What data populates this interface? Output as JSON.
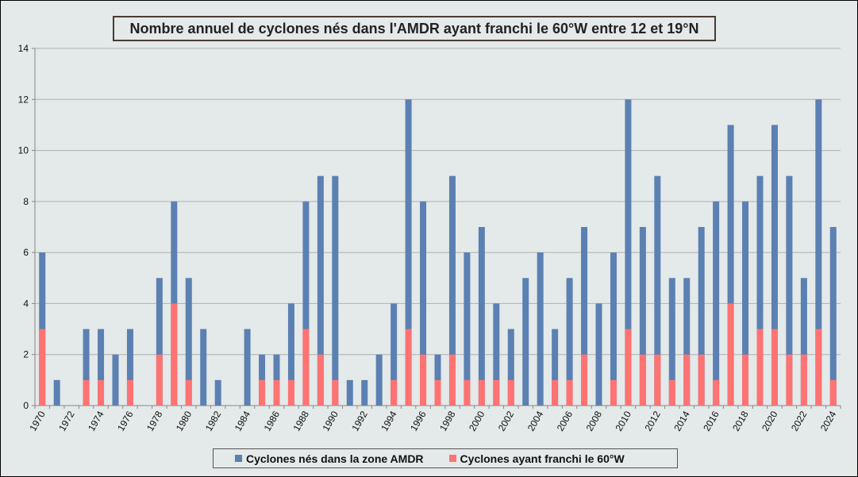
{
  "chart_data": {
    "type": "bar",
    "title": "Nombre annuel de cyclones nés dans l'AMDR ayant franchi le 60°W entre 12 et 19°N",
    "xlabel": "",
    "ylabel": "",
    "ylim": [
      0,
      14
    ],
    "yticks": [
      "0",
      "2",
      "4",
      "6",
      "8",
      "10",
      "12",
      "14"
    ],
    "grid": true,
    "legend_position": "bottom",
    "categories": [
      "1970",
      "1971",
      "1972",
      "1973",
      "1974",
      "1975",
      "1976",
      "1977",
      "1978",
      "1979",
      "1980",
      "1981",
      "1982",
      "1983",
      "1984",
      "1985",
      "1986",
      "1987",
      "1988",
      "1989",
      "1990",
      "1991",
      "1992",
      "1993",
      "1994",
      "1995",
      "1996",
      "1997",
      "1998",
      "1999",
      "2000",
      "2001",
      "2002",
      "2003",
      "2004",
      "2005",
      "2006",
      "2007",
      "2008",
      "2009",
      "2010",
      "2011",
      "2012",
      "2013",
      "2014",
      "2015",
      "2016",
      "2017",
      "2018",
      "2019",
      "2020",
      "2021",
      "2022",
      "2023",
      "2024"
    ],
    "tick_labels": [
      "1970",
      "1972",
      "1974",
      "1976",
      "1978",
      "1980",
      "1982",
      "1984",
      "1986",
      "1988",
      "1990",
      "1992",
      "1994",
      "1996",
      "1998",
      "2000",
      "2002",
      "2004",
      "2006",
      "2008",
      "2010",
      "2012",
      "2014",
      "2016",
      "2018",
      "2020",
      "2022",
      "2024"
    ],
    "series": [
      {
        "name": "Cyclones nés dans la zone AMDR",
        "color": "#5b80b2",
        "values": [
          6,
          1,
          0,
          3,
          3,
          2,
          3,
          0,
          5,
          8,
          5,
          3,
          1,
          0,
          3,
          2,
          2,
          4,
          8,
          9,
          9,
          1,
          1,
          2,
          4,
          12,
          8,
          2,
          9,
          6,
          7,
          4,
          3,
          5,
          6,
          3,
          5,
          7,
          4,
          6,
          12,
          7,
          9,
          5,
          5,
          7,
          8,
          11,
          8,
          9,
          11,
          9,
          5,
          12,
          7
        ]
      },
      {
        "name": "Cyclones ayant franchi le 60°W",
        "color": "#ff7373",
        "values": [
          3,
          0,
          0,
          1,
          1,
          0,
          1,
          0,
          2,
          4,
          1,
          0,
          0,
          0,
          0,
          1,
          1,
          1,
          3,
          2,
          1,
          0,
          0,
          0,
          1,
          3,
          2,
          1,
          2,
          1,
          1,
          1,
          1,
          0,
          0,
          1,
          1,
          2,
          0,
          1,
          3,
          2,
          2,
          1,
          2,
          2,
          1,
          4,
          2,
          3,
          3,
          2,
          2,
          3,
          1
        ]
      }
    ]
  }
}
